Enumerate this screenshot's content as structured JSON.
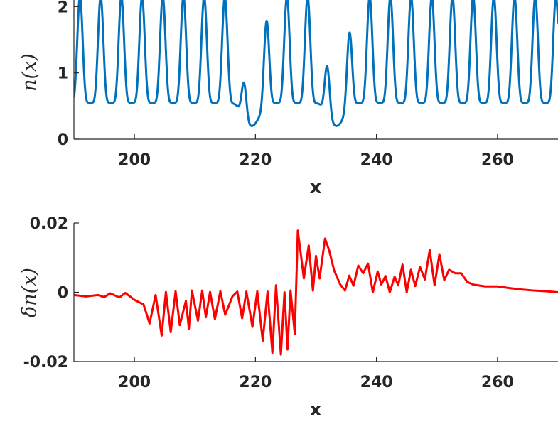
{
  "chart_data": [
    {
      "type": "line",
      "xlabel": "x",
      "ylabel": "n(x)",
      "xlim": [
        190,
        270
      ],
      "ylim": [
        0,
        2.1
      ],
      "xticks": [
        "200",
        "220",
        "240",
        "260"
      ],
      "xtick_values": [
        200,
        220,
        240,
        260
      ],
      "yticks": [
        "0",
        "1",
        "2"
      ],
      "ytick_values": [
        0,
        1,
        2
      ],
      "grid": false,
      "series": [
        {
          "color": "#0072BD",
          "model": "periodic density peaks with two dark-soliton dips",
          "baseline": 0.55,
          "peak": 2.15,
          "period": 3.42,
          "first_peak_x": 191.0,
          "dips": [
            {
              "x": 219.4,
              "min": 0.2
            },
            {
              "x": 233.4,
              "min": 0.2
            }
          ]
        }
      ]
    },
    {
      "type": "line",
      "xlabel": "x",
      "ylabel": "δn(x)",
      "xlim": [
        190,
        270
      ],
      "ylim": [
        -0.02,
        0.02
      ],
      "xticks": [
        "200",
        "220",
        "240",
        "260"
      ],
      "xtick_values": [
        200,
        220,
        240,
        260
      ],
      "yticks": [
        "-0.02",
        "0",
        "0.02"
      ],
      "ytick_values": [
        -0.02,
        0,
        0.02
      ],
      "grid": false,
      "series": [
        {
          "color": "#FF0000",
          "x": [
            190,
            192,
            194,
            195,
            196,
            197.5,
            198.5,
            200,
            201.5,
            202.5,
            203.5,
            204.5,
            205.2,
            206,
            206.8,
            207.5,
            208.5,
            209,
            209.5,
            210.5,
            211.2,
            211.8,
            212.5,
            213.3,
            214.2,
            215,
            216.2,
            217,
            217.8,
            218.5,
            219.5,
            220.3,
            221.2,
            222,
            222.8,
            223.4,
            224.2,
            224.8,
            225.3,
            225.8,
            226.5,
            227,
            227.5,
            228,
            228.8,
            229.5,
            230,
            230.6,
            231.5,
            232.2,
            233,
            234,
            234.8,
            235.5,
            236.2,
            237,
            237.8,
            238.6,
            239.4,
            240.2,
            240.8,
            241.5,
            242.2,
            243,
            243.6,
            244.3,
            245,
            245.7,
            246.4,
            247.2,
            248,
            248.8,
            249.6,
            250.4,
            251.2,
            252,
            253,
            254,
            255,
            256,
            258,
            260,
            262,
            264,
            266,
            268,
            270
          ],
          "y": [
            -0.0008,
            -0.0012,
            -0.0008,
            -0.0014,
            -0.0003,
            -0.0015,
            -0.0002,
            -0.0022,
            -0.0035,
            -0.009,
            -0.0008,
            -0.0125,
            0.0001,
            -0.0115,
            0.0003,
            -0.0095,
            -0.0025,
            -0.0105,
            0.0005,
            -0.0082,
            0.0005,
            -0.0072,
            0.0001,
            -0.0078,
            0.0003,
            -0.0065,
            -0.0012,
            0.0002,
            -0.0075,
            0.0002,
            -0.01,
            0.0003,
            -0.014,
            0.0002,
            -0.0175,
            0.002,
            -0.018,
            0.0,
            -0.0165,
            0.0005,
            -0.012,
            0.0178,
            0.011,
            0.004,
            0.0135,
            0.0005,
            0.0105,
            0.004,
            0.0155,
            0.012,
            0.0063,
            0.0023,
            0.0005,
            0.0048,
            0.0019,
            0.0077,
            0.0055,
            0.0083,
            0.0,
            0.006,
            0.0022,
            0.0047,
            0.0,
            0.0045,
            0.002,
            0.008,
            0.0,
            0.0065,
            0.0018,
            0.0073,
            0.0037,
            0.0122,
            0.002,
            0.011,
            0.0035,
            0.0065,
            0.0055,
            0.0055,
            0.003,
            0.0022,
            0.0017,
            0.0017,
            0.0012,
            0.0008,
            0.0005,
            0.0003,
            0.0
          ]
        }
      ]
    }
  ]
}
